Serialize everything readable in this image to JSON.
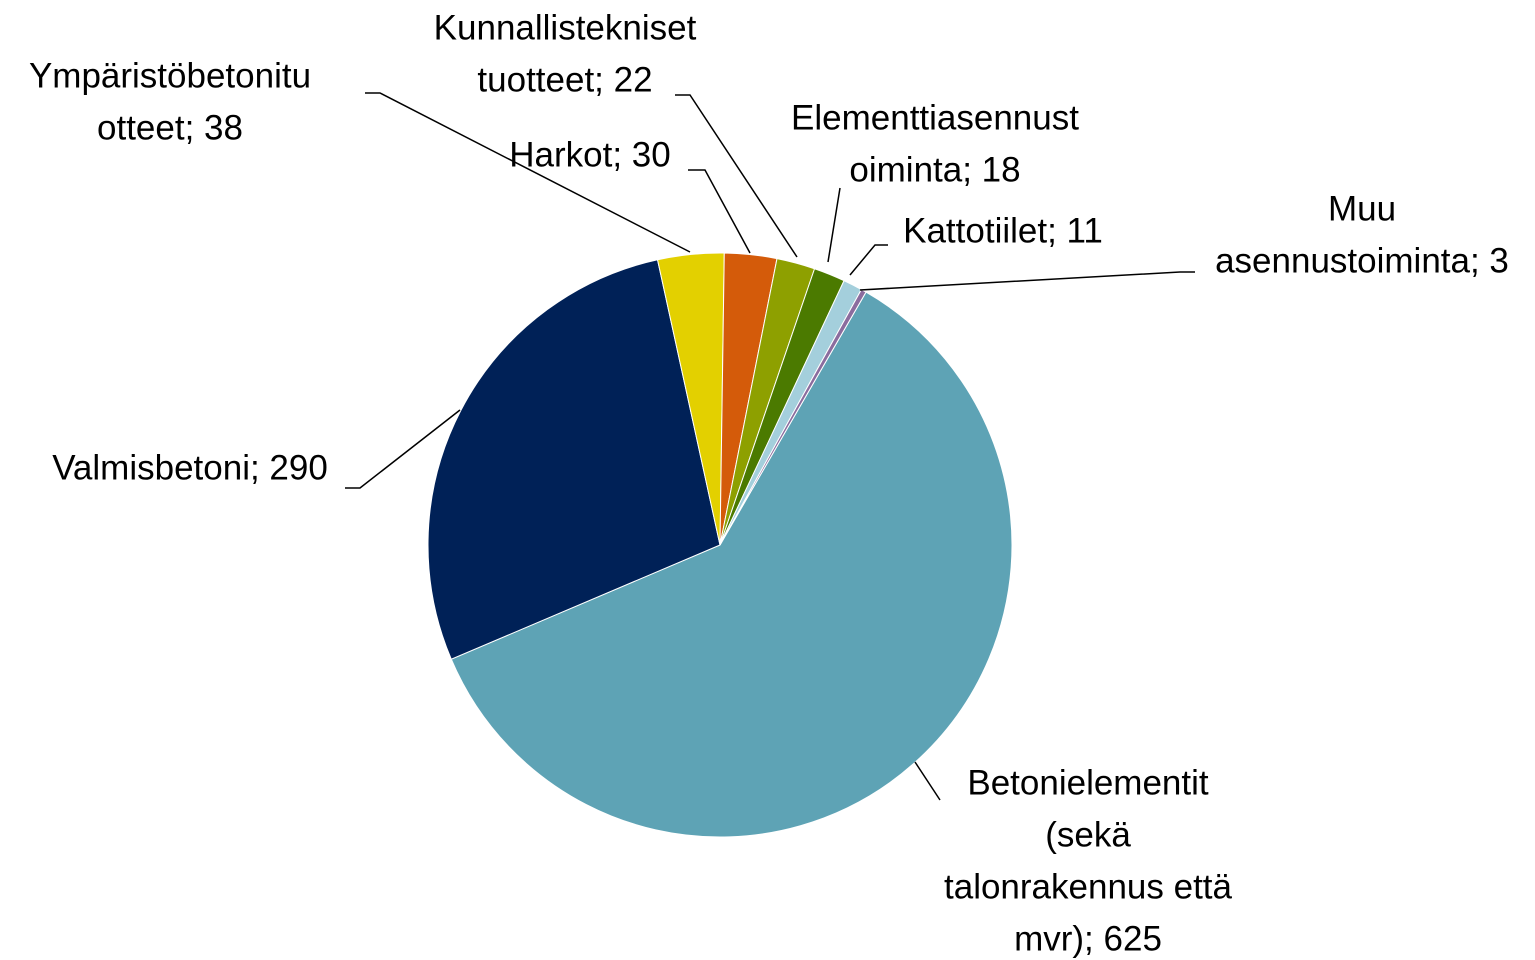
{
  "chart_data": {
    "type": "pie",
    "values": [
      625,
      290,
      38,
      30,
      22,
      18,
      11,
      3
    ],
    "value_labels": [
      [
        "Betonielementit",
        "(sekä",
        "talonrakennus että",
        "mvr); 625"
      ],
      [
        "Valmisbetoni; 290"
      ],
      [
        "Ympäristöbetonitu",
        "otteet; 38"
      ],
      [
        "Harkot; 30"
      ],
      [
        "Kunnallistekniset",
        "tuotteet; 22"
      ],
      [
        "Elementtiasennust",
        "oiminta; 18"
      ],
      [
        "Kattotiilet; 11"
      ],
      [
        "Muu",
        "asennustoiminta; 3"
      ]
    ],
    "colors": [
      "#5ea3b5",
      "#002157",
      "#e3d000",
      "#d45b0a",
      "#8ea000",
      "#4b7a00",
      "#a4cfdc",
      "#8b6c9e"
    ]
  }
}
